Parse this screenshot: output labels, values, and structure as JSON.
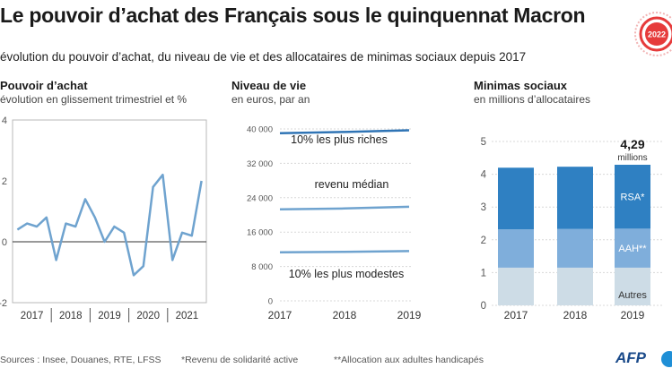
{
  "header": {
    "title": "Le pouvoir d’achat des Français sous le quinquennat Macron",
    "subtitle": "évolution du pouvoir d’achat, du niveau de vie et des allocataires de minimas sociaux depuis 2017",
    "badge_text": "2022"
  },
  "footer": {
    "sources": "Sources : Insee, Douanes, RTE, LFSS",
    "note_rsa": "*Revenu de solidarité active",
    "note_aah": "**Allocation aux adultes handicapés",
    "logo": "AFP"
  },
  "colors": {
    "line": "#6fa3cf",
    "rich_line": "#2f74b5",
    "bar_rsa": "#2f80c2",
    "bar_aah": "#7faedb",
    "bar_autres": "#cddce6",
    "badge_ring": "#e63b3b"
  },
  "chart_data": [
    {
      "type": "line",
      "title": "Pouvoir d’achat",
      "subtitle": "évolution en glissement trimestriel et %",
      "x_groups": [
        "2017",
        "2018",
        "2019",
        "2020",
        "2021"
      ],
      "x": [
        "2017-T1",
        "2017-T2",
        "2017-T3",
        "2017-T4",
        "2018-T1",
        "2018-T2",
        "2018-T3",
        "2018-T4",
        "2019-T1",
        "2019-T2",
        "2019-T3",
        "2019-T4",
        "2020-T1",
        "2020-T2",
        "2020-T3",
        "2020-T4",
        "2021-T1",
        "2021-T2",
        "2021-T3",
        "2021-T4"
      ],
      "values": [
        0.4,
        0.6,
        0.5,
        0.8,
        -0.6,
        0.6,
        0.5,
        1.4,
        0.8,
        0.0,
        0.5,
        0.3,
        -1.1,
        -0.8,
        1.8,
        2.2,
        -0.6,
        0.3,
        0.2,
        2.0
      ],
      "yticks": [
        "4",
        "2",
        "0",
        "-2"
      ],
      "ylim": [
        -2,
        4
      ],
      "grid": false
    },
    {
      "type": "line",
      "title": "Niveau de vie",
      "subtitle": "en euros, par an",
      "x": [
        "2017",
        "2018",
        "2019"
      ],
      "yticks": [
        "40 000",
        "32 000",
        "24 000",
        "16 000",
        "8 000",
        "0"
      ],
      "ylim": [
        0,
        40000
      ],
      "grid": true,
      "series": [
        {
          "name": "10% les plus riches",
          "values": [
            39000,
            39300,
            39700
          ]
        },
        {
          "name": "revenu médian",
          "values": [
            21300,
            21500,
            21900
          ]
        },
        {
          "name": "10% les plus modestes",
          "values": [
            11300,
            11400,
            11600
          ]
        }
      ]
    },
    {
      "type": "bar",
      "title": "Minimas sociaux",
      "subtitle": "en millions d’allocataires",
      "categories": [
        "2017",
        "2018",
        "2019"
      ],
      "yticks": [
        "5",
        "4",
        "3",
        "2",
        "1",
        "0"
      ],
      "ylim": [
        0,
        5
      ],
      "grid": true,
      "stacked": true,
      "series": [
        {
          "name": "Autres",
          "values": [
            1.15,
            1.15,
            1.15
          ]
        },
        {
          "name": "AAH**",
          "values": [
            1.17,
            1.18,
            1.19
          ]
        },
        {
          "name": "RSA*",
          "values": [
            1.88,
            1.9,
            1.95
          ]
        }
      ],
      "annotation_value": "4,29",
      "annotation_unit": "millions"
    }
  ]
}
